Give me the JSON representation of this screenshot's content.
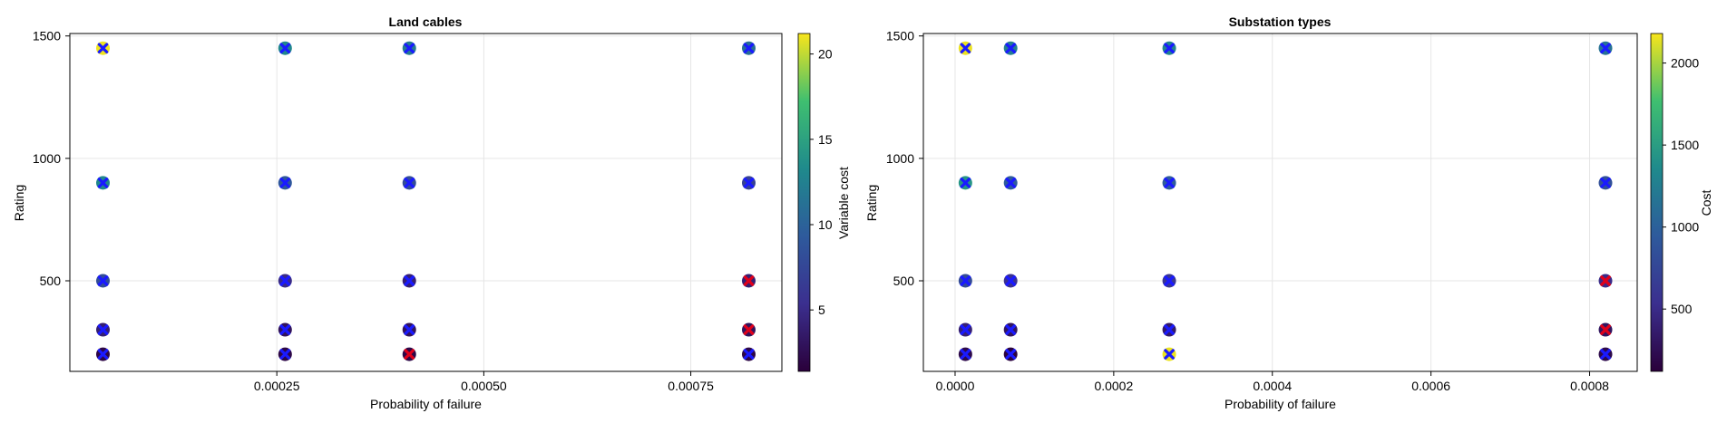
{
  "chart_data": [
    {
      "type": "scatter",
      "title": "Land cables",
      "xlabel": "Probability of failure",
      "ylabel": "Rating",
      "colorbar_label": "Variable cost",
      "xlim": [
        0.0,
        0.00086
      ],
      "ylim": [
        130,
        1510
      ],
      "xticks": [
        0.00025,
        0.0005,
        0.00075
      ],
      "xtick_labels": [
        "0.00025",
        "0.00050",
        "0.00075"
      ],
      "yticks": [
        500,
        1000,
        1500
      ],
      "ytick_labels": [
        "500",
        "1000",
        "1500"
      ],
      "color_range": [
        1.4,
        21.2
      ],
      "colorbar_ticks": [
        5,
        10,
        15,
        20
      ],
      "colorbar_tick_labels": [
        "5",
        "10",
        "15",
        "20"
      ],
      "grid": true,
      "points": [
        {
          "x": 4e-05,
          "y": 1450,
          "c": 21.0,
          "marker": "x",
          "marker_color": "#1a1aff"
        },
        {
          "x": 4e-05,
          "y": 900,
          "c": 13.0,
          "marker": "x",
          "marker_color": "#1a1aff"
        },
        {
          "x": 4e-05,
          "y": 500,
          "c": 8.0,
          "marker": "x",
          "marker_color": "#1a1aff"
        },
        {
          "x": 4e-05,
          "y": 300,
          "c": 4.0,
          "marker": "x",
          "marker_color": "#1a1aff"
        },
        {
          "x": 4e-05,
          "y": 200,
          "c": 2.0,
          "marker": "x",
          "marker_color": "#1a1aff"
        },
        {
          "x": 0.00026,
          "y": 1450,
          "c": 13.0,
          "marker": "x",
          "marker_color": "#1a1aff"
        },
        {
          "x": 0.00026,
          "y": 900,
          "c": 9.0,
          "marker": "x",
          "marker_color": "#1a1aff"
        },
        {
          "x": 0.00026,
          "y": 500,
          "c": 5.0,
          "marker": "x",
          "marker_color": "#1a1aff"
        },
        {
          "x": 0.00026,
          "y": 300,
          "c": 3.0,
          "marker": "x",
          "marker_color": "#1a1aff"
        },
        {
          "x": 0.00026,
          "y": 200,
          "c": 2.0,
          "marker": "x",
          "marker_color": "#1a1aff"
        },
        {
          "x": 0.00041,
          "y": 1450,
          "c": 12.0,
          "marker": "x",
          "marker_color": "#1a1aff"
        },
        {
          "x": 0.00041,
          "y": 900,
          "c": 8.0,
          "marker": "x",
          "marker_color": "#1a1aff"
        },
        {
          "x": 0.00041,
          "y": 500,
          "c": 4.0,
          "marker": "x",
          "marker_color": "#1a1aff"
        },
        {
          "x": 0.00041,
          "y": 300,
          "c": 3.0,
          "marker": "x",
          "marker_color": "#1a1aff"
        },
        {
          "x": 0.00041,
          "y": 200,
          "c": 2.0,
          "marker": "x",
          "marker_color": "#e0001b"
        },
        {
          "x": 0.00082,
          "y": 1450,
          "c": 11.0,
          "marker": "x",
          "marker_color": "#1a1aff"
        },
        {
          "x": 0.00082,
          "y": 900,
          "c": 7.0,
          "marker": "x",
          "marker_color": "#1a1aff"
        },
        {
          "x": 0.00082,
          "y": 500,
          "c": 4.0,
          "marker": "x",
          "marker_color": "#e0001b"
        },
        {
          "x": 0.00082,
          "y": 300,
          "c": 3.0,
          "marker": "x",
          "marker_color": "#e0001b"
        },
        {
          "x": 0.00082,
          "y": 200,
          "c": 2.0,
          "marker": "x",
          "marker_color": "#1a1aff"
        }
      ]
    },
    {
      "type": "scatter",
      "title": "Substation types",
      "xlabel": "Probability of failure",
      "ylabel": "Rating",
      "colorbar_label": "Cost",
      "xlim": [
        -4e-05,
        0.00086
      ],
      "ylim": [
        130,
        1510
      ],
      "xticks": [
        0.0,
        0.0002,
        0.0004,
        0.0006,
        0.0008
      ],
      "xtick_labels": [
        "0.0000",
        "0.0002",
        "0.0004",
        "0.0006",
        "0.0008"
      ],
      "yticks": [
        500,
        1000,
        1500
      ],
      "ytick_labels": [
        "500",
        "1000",
        "1500"
      ],
      "color_range": [
        120,
        2180
      ],
      "colorbar_ticks": [
        500,
        1000,
        1500,
        2000
      ],
      "colorbar_tick_labels": [
        "500",
        "1000",
        "1500",
        "2000"
      ],
      "grid": true,
      "points": [
        {
          "x": 1.3e-05,
          "y": 1450,
          "c": 2150,
          "marker": "x",
          "marker_color": "#1a1aff"
        },
        {
          "x": 1.3e-05,
          "y": 900,
          "c": 1450,
          "marker": "x",
          "marker_color": "#1a1aff"
        },
        {
          "x": 1.3e-05,
          "y": 500,
          "c": 800,
          "marker": "x",
          "marker_color": "#1a1aff"
        },
        {
          "x": 1.3e-05,
          "y": 300,
          "c": 400,
          "marker": "x",
          "marker_color": "#1a1aff"
        },
        {
          "x": 1.3e-05,
          "y": 200,
          "c": 200,
          "marker": "x",
          "marker_color": "#1a1aff"
        },
        {
          "x": 7e-05,
          "y": 1450,
          "c": 1250,
          "marker": "x",
          "marker_color": "#1a1aff"
        },
        {
          "x": 7e-05,
          "y": 900,
          "c": 950,
          "marker": "x",
          "marker_color": "#1a1aff"
        },
        {
          "x": 7e-05,
          "y": 500,
          "c": 550,
          "marker": "x",
          "marker_color": "#1a1aff"
        },
        {
          "x": 7e-05,
          "y": 300,
          "c": 300,
          "marker": "x",
          "marker_color": "#1a1aff"
        },
        {
          "x": 7e-05,
          "y": 200,
          "c": 150,
          "marker": "x",
          "marker_color": "#1a1aff"
        },
        {
          "x": 0.00027,
          "y": 1450,
          "c": 1300,
          "marker": "x",
          "marker_color": "#1a1aff"
        },
        {
          "x": 0.00027,
          "y": 900,
          "c": 950,
          "marker": "x",
          "marker_color": "#1a1aff"
        },
        {
          "x": 0.00027,
          "y": 500,
          "c": 600,
          "marker": "x",
          "marker_color": "#1a1aff"
        },
        {
          "x": 0.00027,
          "y": 300,
          "c": 350,
          "marker": "x",
          "marker_color": "#1a1aff"
        },
        {
          "x": 0.00027,
          "y": 200,
          "c": 2150,
          "marker": "x",
          "marker_color": "#1a1aff"
        },
        {
          "x": 0.00082,
          "y": 1450,
          "c": 1150,
          "marker": "x",
          "marker_color": "#1a1aff"
        },
        {
          "x": 0.00082,
          "y": 900,
          "c": 850,
          "marker": "x",
          "marker_color": "#1a1aff"
        },
        {
          "x": 0.00082,
          "y": 500,
          "c": 500,
          "marker": "x",
          "marker_color": "#e0001b"
        },
        {
          "x": 0.00082,
          "y": 300,
          "c": 300,
          "marker": "x",
          "marker_color": "#e0001b"
        },
        {
          "x": 0.00082,
          "y": 200,
          "c": 200,
          "marker": "x",
          "marker_color": "#1a1aff"
        }
      ]
    }
  ]
}
